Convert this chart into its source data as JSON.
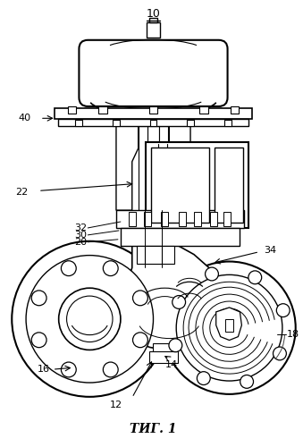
{
  "title": "ΤИГ. 1",
  "label_10": "10",
  "label_40": "40",
  "label_22": "22",
  "label_32": "32",
  "label_30": "30",
  "label_20": "20",
  "label_34": "34",
  "label_18": "18",
  "label_16": "16",
  "label_14": "14",
  "label_12": "12",
  "bg_color": "#ffffff",
  "line_color": "#000000",
  "fig_width": 3.39,
  "fig_height": 5.0,
  "dpi": 100
}
